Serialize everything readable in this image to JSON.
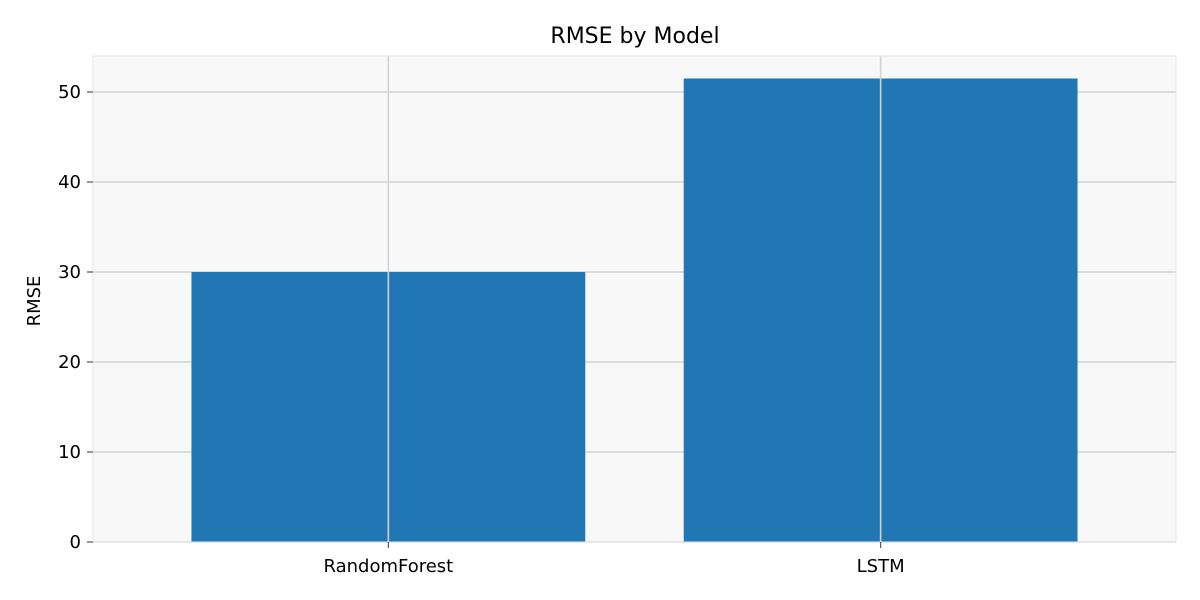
{
  "chart_data": {
    "type": "bar",
    "title": "RMSE by Model",
    "xlabel": "",
    "ylabel": "RMSE",
    "categories": [
      "RandomForest",
      "LSTM"
    ],
    "values": [
      30.0,
      51.5
    ],
    "yticks": [
      0,
      10,
      20,
      30,
      40,
      50
    ],
    "ytick_labels": [
      "0",
      "10",
      "20",
      "30",
      "40",
      "50"
    ],
    "ylim": [
      0,
      54
    ],
    "grid": true,
    "legend": "none",
    "colors": {
      "bar": "#2077b4",
      "plot_background": "#f8f8f8",
      "grid": "#d3d3d3",
      "spine": "#e6e6e6",
      "tick": "#555555",
      "text": "#000000"
    }
  }
}
